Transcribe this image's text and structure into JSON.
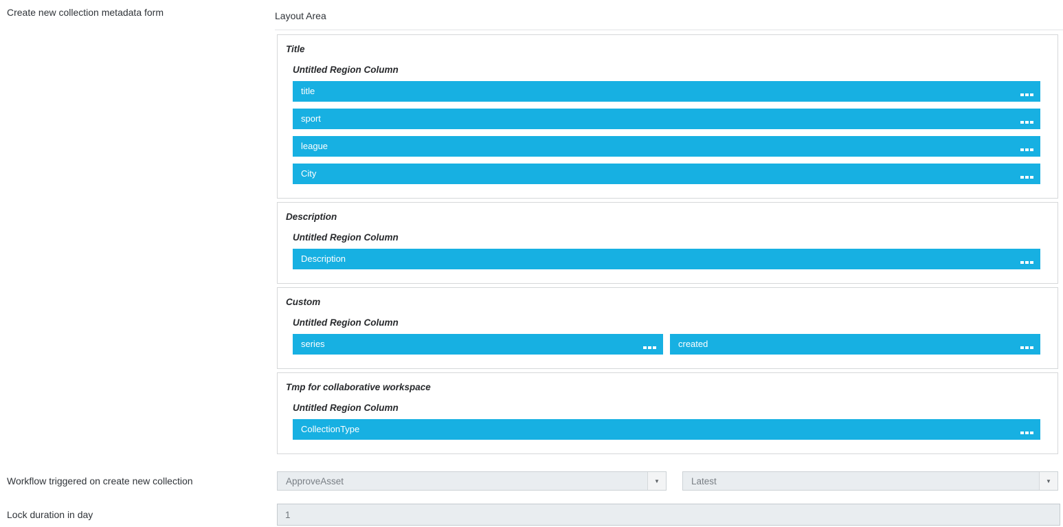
{
  "page": {
    "form_label": "Create new collection metadata form",
    "workflow_label": "Workflow triggered on create new collection",
    "lock_label": "Lock duration in day"
  },
  "layout_area": {
    "heading": "Layout Area",
    "sections": [
      {
        "title": "Title",
        "region_label": "Untitled Region Column",
        "rows": [
          [
            "title"
          ],
          [
            "sport"
          ],
          [
            "league"
          ],
          [
            "City"
          ]
        ]
      },
      {
        "title": "Description",
        "region_label": "Untitled Region Column",
        "rows": [
          [
            "Description"
          ]
        ]
      },
      {
        "title": "Custom",
        "region_label": "Untitled Region Column",
        "rows": [
          [
            "series",
            "created"
          ]
        ]
      },
      {
        "title": "Tmp for collaborative workspace",
        "region_label": "Untitled Region Column",
        "rows": [
          [
            "CollectionType"
          ]
        ]
      }
    ]
  },
  "workflow": {
    "selected": "ApproveAsset",
    "version_selected": "Latest",
    "dropdown_icon": "▼"
  },
  "lock_duration": {
    "value": "1"
  },
  "colors": {
    "accent_blue": "#17b0e2",
    "field_text": "#ffffff",
    "control_bg": "#e9edf0"
  }
}
